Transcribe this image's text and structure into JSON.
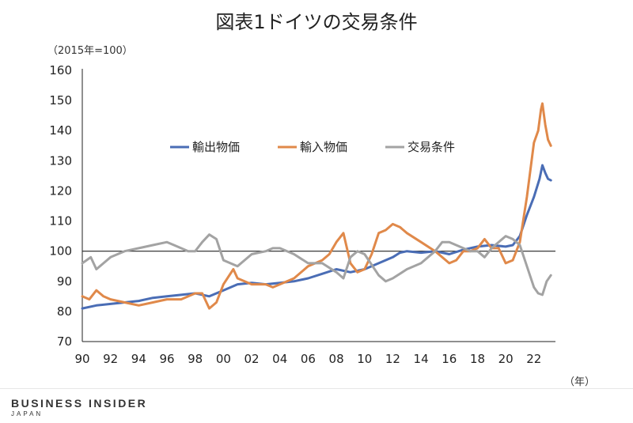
{
  "chart_data": {
    "type": "line",
    "title": "図表1ドイツの交易条件",
    "ylabel": "（2015年=100）",
    "xlabel": "（年）",
    "ylim": [
      70,
      160
    ],
    "yticks": [
      70,
      80,
      90,
      100,
      110,
      120,
      130,
      140,
      150,
      160
    ],
    "xlim": [
      1990,
      2023.3
    ],
    "xticks": [
      {
        "value": 1990,
        "label": "90"
      },
      {
        "value": 1992,
        "label": "92"
      },
      {
        "value": 1994,
        "label": "94"
      },
      {
        "value": 1996,
        "label": "96"
      },
      {
        "value": 1998,
        "label": "98"
      },
      {
        "value": 2000,
        "label": "00"
      },
      {
        "value": 2002,
        "label": "02"
      },
      {
        "value": 2004,
        "label": "04"
      },
      {
        "value": 2006,
        "label": "06"
      },
      {
        "value": 2008,
        "label": "08"
      },
      {
        "value": 2010,
        "label": "10"
      },
      {
        "value": 2012,
        "label": "12"
      },
      {
        "value": 2014,
        "label": "14"
      },
      {
        "value": 2016,
        "label": "16"
      },
      {
        "value": 2018,
        "label": "18"
      },
      {
        "value": 2020,
        "label": "20"
      },
      {
        "value": 2022,
        "label": "22"
      }
    ],
    "reference_line": 100,
    "legend_position": "top-left",
    "series": [
      {
        "name": "輸出物価",
        "color": "#4a6db5",
        "points": [
          [
            1990,
            81
          ],
          [
            1991,
            82
          ],
          [
            1992,
            82.5
          ],
          [
            1993,
            83
          ],
          [
            1994,
            83.5
          ],
          [
            1995,
            84.5
          ],
          [
            1996,
            85
          ],
          [
            1997,
            85.5
          ],
          [
            1998,
            86
          ],
          [
            1999,
            85
          ],
          [
            2000,
            87
          ],
          [
            2001,
            89
          ],
          [
            2002,
            89.5
          ],
          [
            2003,
            89
          ],
          [
            2004,
            89.5
          ],
          [
            2005,
            90
          ],
          [
            2006,
            91
          ],
          [
            2007,
            92.5
          ],
          [
            2008,
            94
          ],
          [
            2009,
            93
          ],
          [
            2010,
            94
          ],
          [
            2011,
            96
          ],
          [
            2012,
            98
          ],
          [
            2012.5,
            99.5
          ],
          [
            2013,
            100
          ],
          [
            2014,
            99.5
          ],
          [
            2015,
            100
          ],
          [
            2016,
            99
          ],
          [
            2017,
            100.5
          ],
          [
            2018,
            101.5
          ],
          [
            2019,
            102
          ],
          [
            2020,
            101.5
          ],
          [
            2020.5,
            102
          ],
          [
            2021,
            105
          ],
          [
            2021.5,
            112
          ],
          [
            2022,
            118
          ],
          [
            2022.4,
            124
          ],
          [
            2022.6,
            128.5
          ],
          [
            2022.8,
            126
          ],
          [
            2023,
            124
          ],
          [
            2023.2,
            123.5
          ]
        ]
      },
      {
        "name": "輸入物価",
        "color": "#e0894a",
        "points": [
          [
            1990,
            85
          ],
          [
            1990.5,
            84
          ],
          [
            1991,
            87
          ],
          [
            1991.5,
            85
          ],
          [
            1992,
            84
          ],
          [
            1993,
            83
          ],
          [
            1994,
            82
          ],
          [
            1995,
            83
          ],
          [
            1996,
            84
          ],
          [
            1997,
            84
          ],
          [
            1998,
            86
          ],
          [
            1998.5,
            86
          ],
          [
            1999,
            81
          ],
          [
            1999.5,
            83
          ],
          [
            2000,
            89
          ],
          [
            2000.7,
            94
          ],
          [
            2001,
            91
          ],
          [
            2002,
            89
          ],
          [
            2003,
            89
          ],
          [
            2003.5,
            88
          ],
          [
            2004,
            89
          ],
          [
            2005,
            91
          ],
          [
            2006,
            95
          ],
          [
            2007,
            97
          ],
          [
            2007.5,
            99
          ],
          [
            2008,
            103
          ],
          [
            2008.5,
            106
          ],
          [
            2009,
            96
          ],
          [
            2009.5,
            93
          ],
          [
            2010,
            94
          ],
          [
            2010.5,
            99
          ],
          [
            2011,
            106
          ],
          [
            2011.5,
            107
          ],
          [
            2012,
            109
          ],
          [
            2012.5,
            108
          ],
          [
            2013,
            106
          ],
          [
            2014,
            103
          ],
          [
            2015,
            100
          ],
          [
            2016,
            96
          ],
          [
            2016.5,
            97
          ],
          [
            2017,
            100
          ],
          [
            2017.5,
            100
          ],
          [
            2018,
            101
          ],
          [
            2018.5,
            104
          ],
          [
            2019,
            101
          ],
          [
            2019.5,
            101
          ],
          [
            2020,
            96
          ],
          [
            2020.5,
            97
          ],
          [
            2021,
            103
          ],
          [
            2021.5,
            118
          ],
          [
            2022,
            136
          ],
          [
            2022.3,
            140
          ],
          [
            2022.5,
            147
          ],
          [
            2022.6,
            149
          ],
          [
            2022.8,
            142
          ],
          [
            2023,
            137
          ],
          [
            2023.2,
            135
          ]
        ]
      },
      {
        "name": "交易条件",
        "color": "#a3a3a3",
        "points": [
          [
            1990,
            96
          ],
          [
            1990.3,
            97
          ],
          [
            1990.6,
            98
          ],
          [
            1991,
            94
          ],
          [
            1991.5,
            96
          ],
          [
            1992,
            98
          ],
          [
            1993,
            100
          ],
          [
            1994,
            101
          ],
          [
            1995,
            102
          ],
          [
            1996,
            103
          ],
          [
            1996.5,
            102
          ],
          [
            1997,
            101
          ],
          [
            1997.5,
            100
          ],
          [
            1998,
            100
          ],
          [
            1998.5,
            103
          ],
          [
            1999,
            105.5
          ],
          [
            1999.5,
            104
          ],
          [
            2000,
            97
          ],
          [
            2001,
            95
          ],
          [
            2001.5,
            97
          ],
          [
            2002,
            99
          ],
          [
            2003,
            100
          ],
          [
            2003.5,
            101
          ],
          [
            2004,
            101
          ],
          [
            2005,
            99
          ],
          [
            2006,
            96
          ],
          [
            2007,
            96
          ],
          [
            2008,
            93
          ],
          [
            2008.5,
            91
          ],
          [
            2009,
            98
          ],
          [
            2009.5,
            100
          ],
          [
            2010,
            99
          ],
          [
            2011,
            92
          ],
          [
            2011.5,
            90
          ],
          [
            2012,
            91
          ],
          [
            2013,
            94
          ],
          [
            2014,
            96
          ],
          [
            2015,
            100
          ],
          [
            2015.5,
            103
          ],
          [
            2016,
            103
          ],
          [
            2017,
            101
          ],
          [
            2017.5,
            100
          ],
          [
            2018,
            100
          ],
          [
            2018.5,
            98
          ],
          [
            2019,
            101
          ],
          [
            2019.5,
            103
          ],
          [
            2020,
            105
          ],
          [
            2020.5,
            104
          ],
          [
            2021,
            102
          ],
          [
            2021.5,
            95
          ],
          [
            2022,
            88
          ],
          [
            2022.3,
            86
          ],
          [
            2022.6,
            85.5
          ],
          [
            2022.9,
            90
          ],
          [
            2023.2,
            92
          ]
        ]
      }
    ]
  },
  "footer": {
    "brand": "BUSINESS INSIDER",
    "brand_sub": "JAPAN"
  }
}
